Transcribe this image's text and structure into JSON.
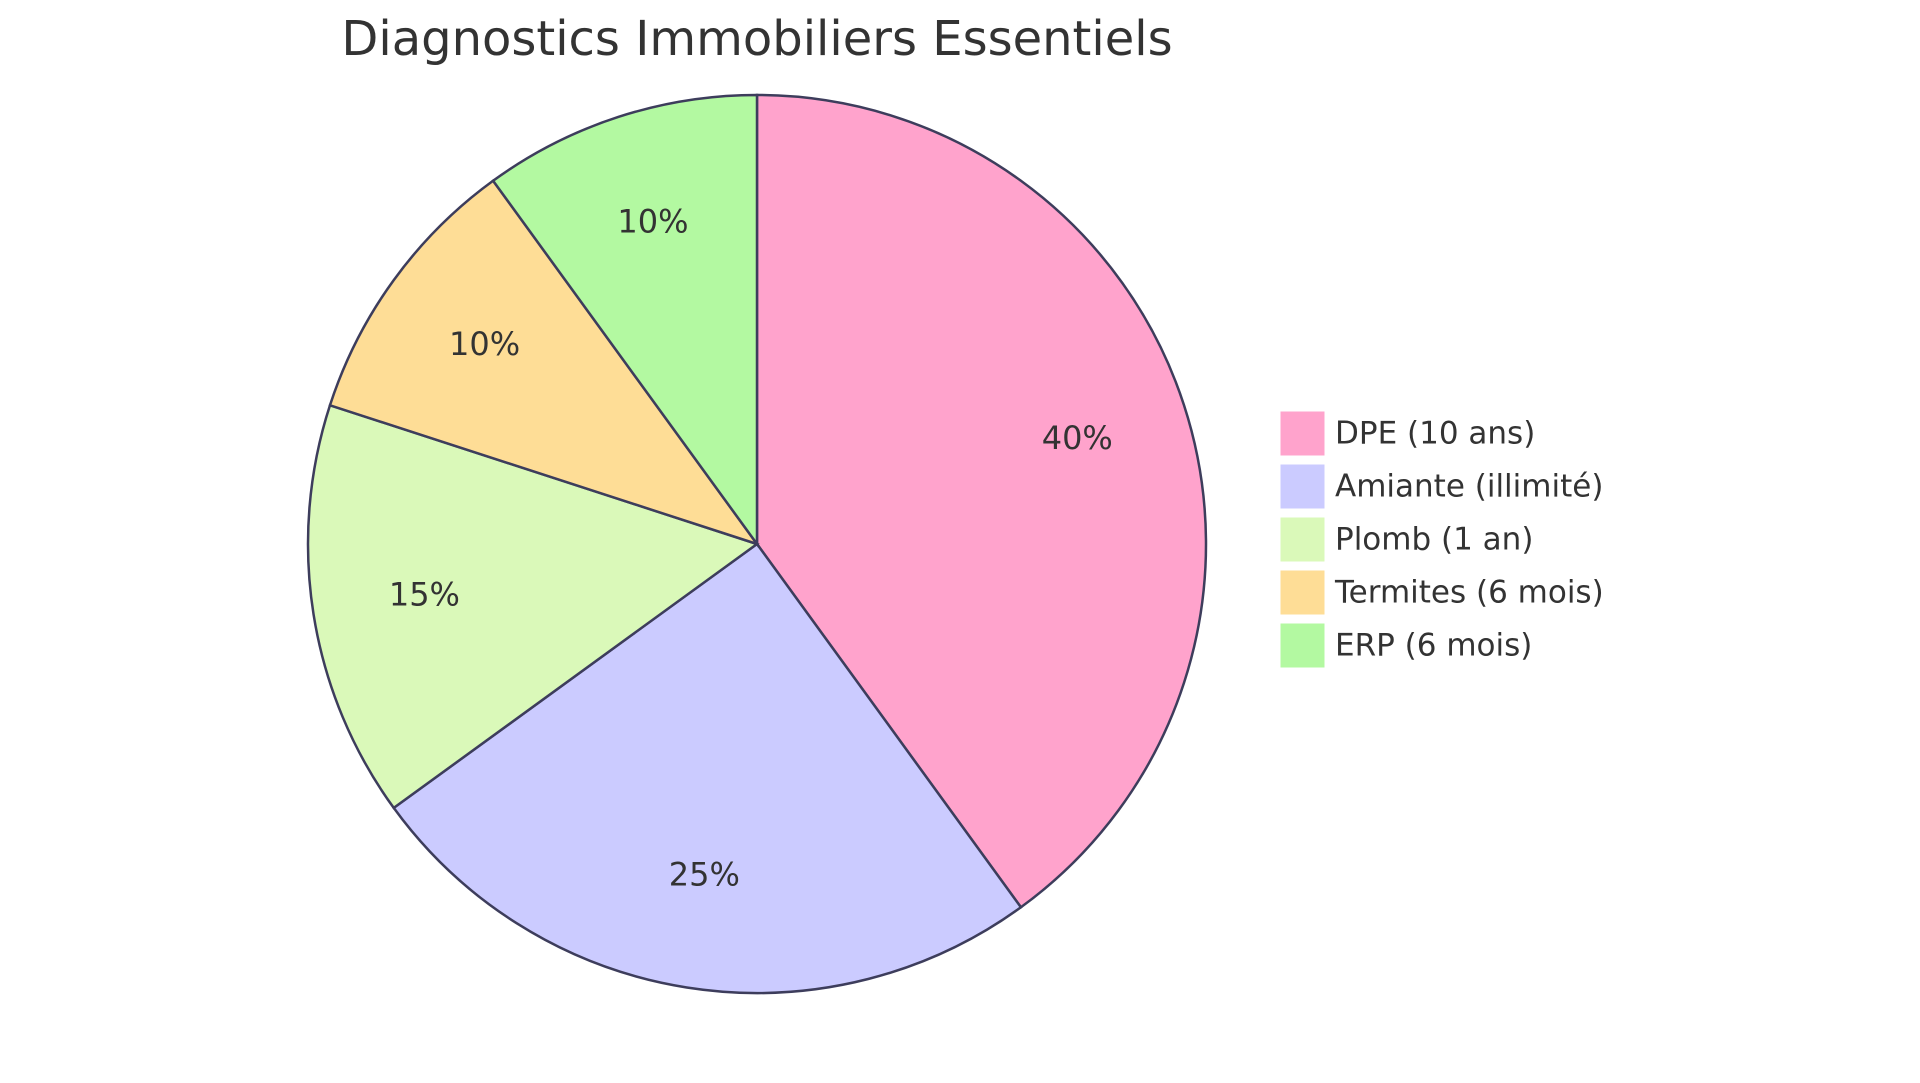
{
  "chart_data": {
    "type": "pie",
    "title": "Diagnostics Immobiliers Essentiels",
    "categories": [
      "DPE (10 ans)",
      "Amiante (illimité)",
      "Plomb (1 an)",
      "Termites (6 mois)",
      "ERP (6 mois)"
    ],
    "values": [
      40,
      25,
      15,
      10,
      10
    ],
    "value_labels": [
      "40%",
      "25%",
      "15%",
      "10%",
      "10%"
    ],
    "colors": [
      "#ffa3cc",
      "#cbcbff",
      "#daf9b9",
      "#fedd96",
      "#b3f9a1"
    ],
    "legend": "right"
  }
}
